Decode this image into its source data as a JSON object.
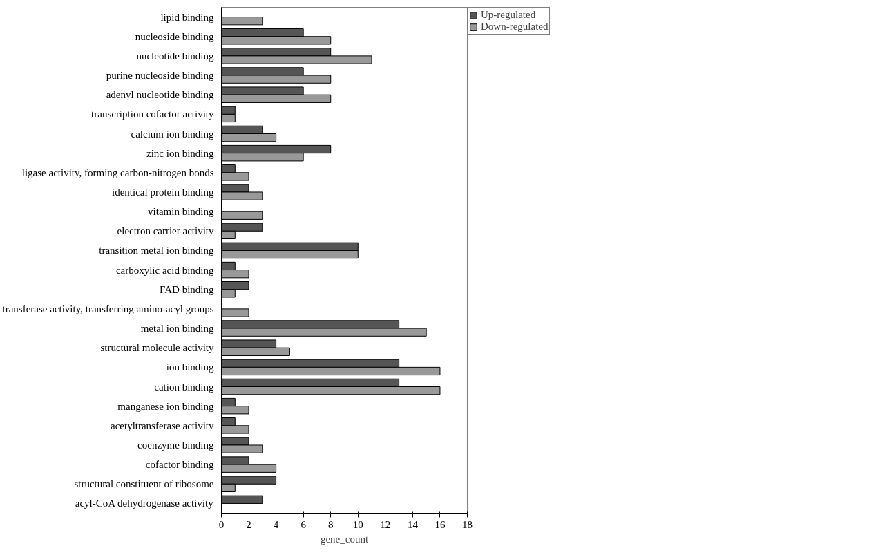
{
  "chart_data": {
    "type": "bar",
    "orientation": "horizontal",
    "xlabel": "gene_count",
    "categories": [
      "lipid binding",
      "nucleoside binding",
      "nucleotide binding",
      "purine nucleoside binding",
      "adenyl nucleotide binding",
      "transcription cofactor activity",
      "calcium ion binding",
      "zinc ion binding",
      "ligase activity, forming carbon-nitrogen bonds",
      "identical protein binding",
      "vitamin binding",
      "electron carrier activity",
      "transition metal ion binding",
      "carboxylic acid binding",
      "FAD binding",
      "transferase activity, transferring amino-acyl groups",
      "metal ion binding",
      "structural molecule activity",
      "ion binding",
      "cation binding",
      "manganese ion binding",
      "acetyltransferase activity",
      "coenzyme binding",
      "cofactor binding",
      "structural constituent of ribosome",
      "acyl-CoA dehydrogenase activity"
    ],
    "series": [
      {
        "name": "Up-regulated",
        "color": "#555555",
        "values": [
          0,
          6,
          8,
          6,
          6,
          1,
          3,
          8,
          1,
          2,
          0,
          3,
          10,
          1,
          2,
          0,
          13,
          4,
          13,
          13,
          1,
          1,
          2,
          2,
          4,
          3
        ]
      },
      {
        "name": "Down-regulated",
        "color": "#999999",
        "values": [
          3,
          8,
          11,
          8,
          8,
          1,
          4,
          6,
          2,
          3,
          3,
          1,
          10,
          2,
          1,
          2,
          15,
          5,
          16,
          16,
          2,
          2,
          3,
          4,
          1,
          0
        ]
      }
    ],
    "xlim": [
      0,
      18
    ],
    "xticks": [
      0,
      2,
      4,
      6,
      8,
      10,
      12,
      14,
      16,
      18
    ],
    "grid": false,
    "legend": "top right"
  }
}
